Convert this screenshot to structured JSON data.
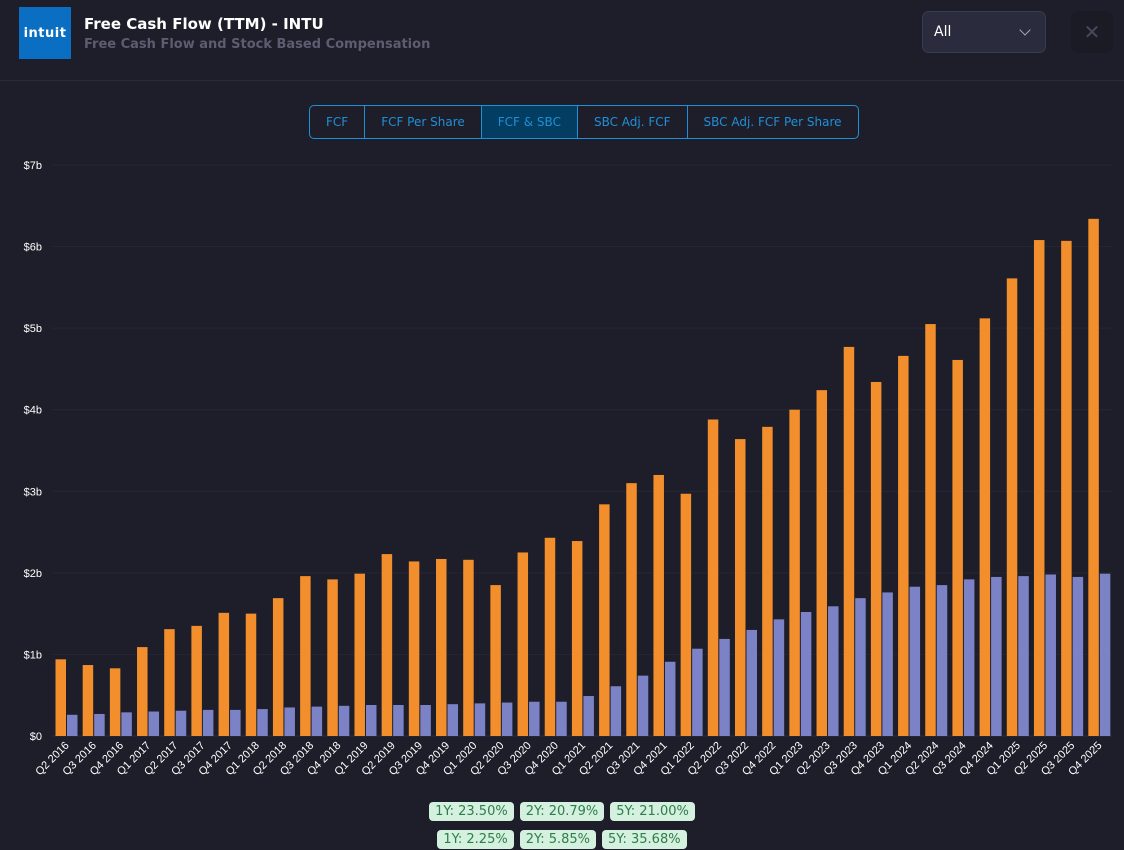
{
  "header": {
    "logo": "intuit",
    "title": "Free Cash Flow (TTM) - INTU",
    "subtitle": "Free Cash Flow and Stock Based Compensation",
    "period_select": "All",
    "close_icon": "close-icon"
  },
  "tabs": [
    {
      "label": "FCF"
    },
    {
      "label": "FCF Per Share"
    },
    {
      "label": "FCF & SBC",
      "active": true
    },
    {
      "label": "SBC Adj. FCF"
    },
    {
      "label": "SBC Adj. FCF Per Share"
    }
  ],
  "chart_data": {
    "type": "bar",
    "ylim": [
      0,
      7
    ],
    "y_ticks": [
      "$0",
      "$1b",
      "$2b",
      "$3b",
      "$4b",
      "$5b",
      "$6b",
      "$7b"
    ],
    "grid": true,
    "categories": [
      "Q2 2016",
      "Q3 2016",
      "Q4 2016",
      "Q1 2017",
      "Q2 2017",
      "Q3 2017",
      "Q4 2017",
      "Q1 2018",
      "Q2 2018",
      "Q3 2018",
      "Q4 2018",
      "Q1 2019",
      "Q2 2019",
      "Q3 2019",
      "Q4 2019",
      "Q1 2020",
      "Q2 2020",
      "Q3 2020",
      "Q4 2020",
      "Q1 2021",
      "Q2 2021",
      "Q3 2021",
      "Q4 2021",
      "Q1 2022",
      "Q2 2022",
      "Q3 2022",
      "Q4 2022",
      "Q1 2023",
      "Q2 2023",
      "Q3 2023",
      "Q4 2023",
      "Q1 2024",
      "Q2 2024",
      "Q3 2024",
      "Q4 2024",
      "Q1 2025",
      "Q2 2025",
      "Q3 2025",
      "Q4 2025"
    ],
    "series": [
      {
        "color": "#f28e2b",
        "values": [
          0.94,
          0.87,
          0.83,
          1.09,
          1.31,
          1.35,
          1.51,
          1.5,
          1.69,
          1.96,
          1.92,
          1.99,
          2.23,
          2.14,
          2.17,
          2.16,
          1.85,
          2.25,
          2.43,
          2.39,
          2.84,
          3.1,
          3.2,
          2.97,
          3.88,
          3.64,
          3.79,
          4.0,
          4.24,
          4.77,
          4.34,
          4.66,
          5.05,
          4.61,
          5.12,
          5.61,
          6.08,
          6.07,
          6.34
        ]
      },
      {
        "color": "#7b83c6",
        "values": [
          0.26,
          0.27,
          0.29,
          0.3,
          0.31,
          0.32,
          0.32,
          0.33,
          0.35,
          0.36,
          0.37,
          0.38,
          0.38,
          0.38,
          0.39,
          0.4,
          0.41,
          0.42,
          0.42,
          0.49,
          0.61,
          0.74,
          0.91,
          1.07,
          1.19,
          1.3,
          1.43,
          1.52,
          1.59,
          1.69,
          1.76,
          1.83,
          1.85,
          1.92,
          1.95,
          1.96,
          1.98,
          1.95,
          1.99
        ]
      }
    ]
  },
  "growth": {
    "row1": [
      "1Y: 23.50%",
      "2Y: 20.79%",
      "5Y: 21.00%"
    ],
    "row2": [
      "1Y: 2.25%",
      "2Y: 5.85%",
      "5Y: 35.68%"
    ]
  }
}
